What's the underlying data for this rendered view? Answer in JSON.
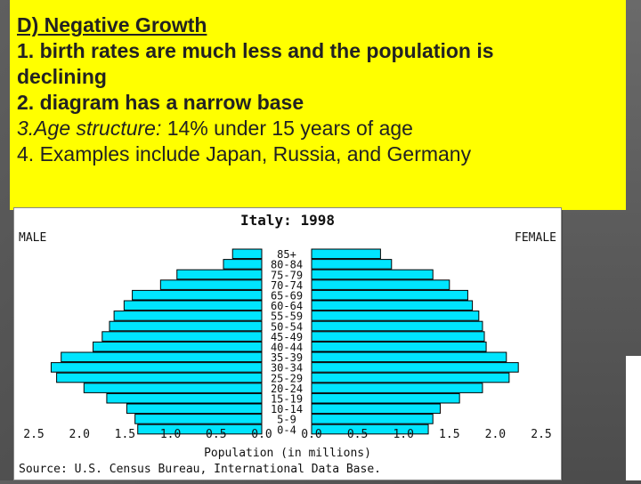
{
  "slide": {
    "heading": "D) Negative Growth",
    "line1a": "1. birth rates are much less and the population is",
    "line1b": "declining",
    "line2": "2. diagram has a narrow base",
    "line3_label": "3.Age structure:",
    "line3_value": " 14% under 15 years of age",
    "line4": "4. Examples include Japan, Russia, and Germany"
  },
  "colors": {
    "highlight": "#ffff00",
    "bar_fill": "#00e5ff",
    "bar_stroke": "#000000"
  },
  "chart_data": {
    "type": "bar",
    "orientation": "horizontal-pyramid",
    "title": "Italy: 1998",
    "left_label": "MALE",
    "right_label": "FEMALE",
    "xlabel": "Population (in millions)",
    "source": "Source: U.S. Census Bureau, International Data Base.",
    "xlim": [
      0,
      2.5
    ],
    "x_ticks_left": [
      "2.5",
      "2.0",
      "1.5",
      "1.0",
      "0.5",
      "0.0"
    ],
    "x_ticks_right": [
      "0.0",
      "0.5",
      "1.0",
      "1.5",
      "2.0",
      "2.5"
    ],
    "categories": [
      "85+",
      "80-84",
      "75-79",
      "70-74",
      "65-69",
      "60-64",
      "55-59",
      "50-54",
      "45-49",
      "40-44",
      "35-39",
      "30-34",
      "25-29",
      "20-24",
      "15-19",
      "10-14",
      "5-9",
      "0-4"
    ],
    "series": [
      {
        "name": "MALE",
        "values": [
          0.32,
          0.42,
          0.93,
          1.11,
          1.42,
          1.51,
          1.62,
          1.67,
          1.75,
          1.85,
          2.2,
          2.31,
          2.25,
          1.95,
          1.7,
          1.48,
          1.39,
          1.36
        ]
      },
      {
        "name": "FEMALE",
        "values": [
          0.75,
          0.87,
          1.32,
          1.5,
          1.7,
          1.75,
          1.82,
          1.86,
          1.88,
          1.9,
          2.12,
          2.25,
          2.15,
          1.86,
          1.61,
          1.4,
          1.32,
          1.27
        ]
      }
    ]
  }
}
